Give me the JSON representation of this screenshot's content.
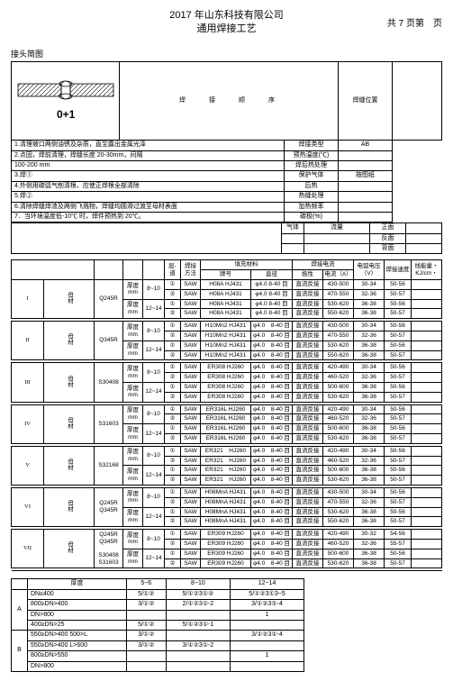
{
  "header": {
    "company": "2017 年山东科技有限公司",
    "doctitle": "通用焊接工艺",
    "pageinfo": "共 7 页第　页"
  },
  "joint_label": "接头简图",
  "joint_caption": "0+1",
  "step_header": "焊　　接　　顺　　序",
  "step_header2": "焊缝位置",
  "steps": [
    {
      "t": "1.清理坡口两侧油锈及杂质，直至露出金属光泽",
      "r1": "焊接类型",
      "r2": "AB"
    },
    {
      "t": "2.点固，焊前清理，焊缝长度 20-30mm，间隔",
      "r1": "预热温度(℃)",
      "r2": ""
    },
    {
      "t": "100-200 mm",
      "r1": "焊后热处理",
      "r2": ""
    },
    {
      "t": "3.焊①",
      "r1": "保护气体",
      "r2": "按图纸"
    },
    {
      "t": "4.外侧用碳弧气刨清根，应使正焊根全部清除",
      "r1": "后热",
      "r2": ""
    },
    {
      "t": "5.焊②",
      "r1": "热缝处理",
      "r2": ""
    },
    {
      "t": "6.清除焊缝焊渣及两侧飞溅物，焊缝均圆滑过渡至母材表面",
      "r1": "加热频率",
      "r2": ""
    },
    {
      "t": "7．当环境温度低-10℃ 时，焊件预热到 20℃。",
      "r1": "碳极(%)",
      "r2": ""
    }
  ],
  "gas_labels": {
    "zm": "正面",
    "fm": "反面",
    "bm": "背面",
    "qt": "气体",
    "ll": "流量"
  },
  "main_headers": {
    "layer": "层-道",
    "method": "焊接方法",
    "filler": "填充材料",
    "brand": "牌号",
    "dia": "直径",
    "current": "焊接电流",
    "polarity": "极性",
    "amp": "电流（A）",
    "volt": "电弧电压（V）",
    "speed": "焊接速度",
    "energy": "线能量・KJ/cm・"
  },
  "groups": [
    {
      "id": "I",
      "mat": "Q245R",
      "rows": [
        {
          "th": "厚度mm",
          "tv": "8~10",
          "layers": [
            "①",
            "②"
          ],
          "m": "SAW",
          "brand": "H08A HJ431",
          "dia": "φ4.0 8-40 目",
          "pol": "直流反接",
          "amp": "430-500",
          "v": "30-34",
          "e": "50-56"
        },
        {
          "layers": [],
          "m": "SAW",
          "brand": "H08A HJ431",
          "dia": "φ4.0 8-40 目",
          "pol": "直流反接",
          "amp": "470-550",
          "v": "32-36",
          "e": "50-57"
        },
        {
          "th": "厚度mm",
          "tv": "12~14",
          "layers": [
            "①",
            "②"
          ],
          "m": "SAW",
          "brand": "H08A HJ431",
          "dia": "φ4.0 8-40 目",
          "pol": "直流反接",
          "amp": "530-620",
          "v": "36-38",
          "e": "50-56"
        },
        {
          "layers": [],
          "m": "SAW",
          "brand": "H08A HJ431",
          "dia": "φ4.0 8-40 目",
          "pol": "直流反接",
          "amp": "550-620",
          "v": "36-38",
          "e": "50-57"
        }
      ]
    },
    {
      "id": "II",
      "mat": "Q345R",
      "rows": [
        {
          "th": "厚度mm",
          "tv": "8~10",
          "layers": [
            "①",
            "②"
          ],
          "m": "SAW",
          "brand": "H10Mn2 HJ431",
          "dia": "φ4.0　8-40 目",
          "pol": "直流反接",
          "amp": "430-500",
          "v": "30-34",
          "e": "50-56"
        },
        {
          "layers": [],
          "m": "SAW",
          "brand": "H10Mn2 HJ431",
          "dia": "φ4.0　8-40 目",
          "pol": "直流反接",
          "amp": "470-550",
          "v": "32-36",
          "e": "50-57"
        },
        {
          "th": "厚度mm",
          "tv": "12~14",
          "layers": [
            "①",
            "②"
          ],
          "m": "SAW",
          "brand": "H10Mn2 HJ431",
          "dia": "φ4.0　8-40 目",
          "pol": "直流反接",
          "amp": "530-620",
          "v": "36-38",
          "e": "50-56"
        },
        {
          "layers": [],
          "m": "SAW",
          "brand": "H10Mn2 HJ431",
          "dia": "φ4.0　8-40 目",
          "pol": "直流反接",
          "amp": "550-620",
          "v": "36-38",
          "e": "50-57"
        }
      ]
    },
    {
      "id": "III",
      "mat": "S30408",
      "rows": [
        {
          "th": "厚度mm",
          "tv": "8~10",
          "layers": [
            "①",
            "②"
          ],
          "m": "SAW",
          "brand": "ER308 HJ260",
          "dia": "φ4.0　8-40 目",
          "pol": "直流反接",
          "amp": "420-490",
          "v": "30-34",
          "e": "50-56"
        },
        {
          "layers": [],
          "m": "SAW",
          "brand": "ER308 HJ260",
          "dia": "φ4.0　8-40 目",
          "pol": "直流反接",
          "amp": "460-520",
          "v": "32-36",
          "e": "50-57"
        },
        {
          "th": "厚度mm",
          "tv": "12~14",
          "layers": [
            "①",
            "②"
          ],
          "m": "SAW",
          "brand": "ER308 HJ260",
          "dia": "φ4.0　8-40 目",
          "pol": "直流反接",
          "amp": "500-600",
          "v": "36-38",
          "e": "50-56"
        },
        {
          "layers": [],
          "m": "SAW",
          "brand": "ER308 HJ260",
          "dia": "φ4.0　8-40 目",
          "pol": "直流反接",
          "amp": "530-620",
          "v": "36-38",
          "e": "50-57"
        }
      ]
    },
    {
      "id": "IV",
      "mat": "S31603",
      "rows": [
        {
          "th": "厚度mm",
          "tv": "8~10",
          "layers": [
            "①",
            "②"
          ],
          "m": "SAW",
          "brand": "ER316L HJ260",
          "dia": "φ4.0　8-40 目",
          "pol": "直流反接",
          "amp": "420-490",
          "v": "30-34",
          "e": "50-56"
        },
        {
          "layers": [],
          "m": "SAW",
          "brand": "ER316L HJ260",
          "dia": "φ4.0　8-40 目",
          "pol": "直流反接",
          "amp": "460-520",
          "v": "32-36",
          "e": "50-57"
        },
        {
          "th": "厚度mm",
          "tv": "12~14",
          "layers": [
            "①",
            "②"
          ],
          "m": "SAW",
          "brand": "ER316L HJ260",
          "dia": "φ4.0　8-40 目",
          "pol": "直流反接",
          "amp": "500-600",
          "v": "36-38",
          "e": "50-56"
        },
        {
          "layers": [],
          "m": "SAW",
          "brand": "ER316L HJ260",
          "dia": "φ4.0　8-40 目",
          "pol": "直流反接",
          "amp": "530-620",
          "v": "36-38",
          "e": "50-57"
        }
      ]
    },
    {
      "id": "V",
      "mat": "S32168",
      "rows": [
        {
          "th": "厚度mm",
          "tv": "8~10",
          "layers": [
            "①",
            "②"
          ],
          "m": "SAW",
          "brand": "ER321　HJ260",
          "dia": "φ4.0　8-40 目",
          "pol": "直流反接",
          "amp": "420-490",
          "v": "30-34",
          "e": "50-56"
        },
        {
          "layers": [],
          "m": "SAW",
          "brand": "ER321　HJ260",
          "dia": "φ4.0　8-40 目",
          "pol": "直流反接",
          "amp": "460-520",
          "v": "32-36",
          "e": "50-57"
        },
        {
          "th": "厚度mm",
          "tv": "12~14",
          "layers": [
            "①",
            "②"
          ],
          "m": "SAW",
          "brand": "ER321　HJ260",
          "dia": "φ4.0　8-40 目",
          "pol": "直流反接",
          "amp": "500-600",
          "v": "36-38",
          "e": "50-56"
        },
        {
          "layers": [],
          "m": "SAW",
          "brand": "ER321　HJ260",
          "dia": "φ4.0　8-40 目",
          "pol": "直流反接",
          "amp": "530-620",
          "v": "36-38",
          "e": "50-57"
        }
      ]
    },
    {
      "id": "VI",
      "mat": "Q245R\nQ345R",
      "rows": [
        {
          "th": "厚度mm",
          "tv": "8~10",
          "layers": [
            "①",
            "②"
          ],
          "m": "SAW",
          "brand": "H08MnA HJ431",
          "dia": "φ4.0　8-40 目",
          "pol": "直流反接",
          "amp": "430-500",
          "v": "30-34",
          "e": "50-56"
        },
        {
          "layers": [],
          "m": "SAW",
          "brand": "H08MnA HJ431",
          "dia": "φ4.0　8-40 目",
          "pol": "直流反接",
          "amp": "470-550",
          "v": "32-36",
          "e": "50-57"
        },
        {
          "th": "厚度mm",
          "tv": "12~14",
          "layers": [
            "①",
            "②"
          ],
          "m": "SAW",
          "brand": "H08MnA HJ431",
          "dia": "φ4.0　8-40 目",
          "pol": "直流反接",
          "amp": "530-620",
          "v": "36-38",
          "e": "50-56"
        },
        {
          "layers": [],
          "m": "SAW",
          "brand": "H08MnA HJ431",
          "dia": "φ4.0　8-40 目",
          "pol": "直流反接",
          "amp": "550-620",
          "v": "36-38",
          "e": "50-57"
        }
      ]
    },
    {
      "id": "VII",
      "mat": "Q245R\nQ345R\n\nS30408\nS31603",
      "rows": [
        {
          "th": "厚度mm",
          "tv": "8~10",
          "layers": [
            "①",
            "②"
          ],
          "m": "SAW",
          "brand": "ER309 HJ260",
          "dia": "φ4.0　8-40 目",
          "pol": "直流反接",
          "amp": "420-490",
          "v": "30-32",
          "e": "54-56"
        },
        {
          "layers": [],
          "m": "SAW",
          "brand": "ER309 HJ260",
          "dia": "φ4.0　8-40 目",
          "pol": "直流反接",
          "amp": "460-520",
          "v": "32-36",
          "e": "55-57"
        },
        {
          "th": "厚度mm",
          "tv": "12~14",
          "layers": [
            "①",
            "②"
          ],
          "m": "SAW",
          "brand": "ER309 HJ260",
          "dia": "φ4.0　8-40 目",
          "pol": "直流反接",
          "amp": "500-600",
          "v": "36-38",
          "e": "50-56"
        },
        {
          "layers": [],
          "m": "SAW",
          "brand": "ER309 HJ260",
          "dia": "φ4.0　8-40 目",
          "pol": "直流反接",
          "amp": "530-620",
          "v": "36-38",
          "e": "50-57"
        }
      ]
    }
  ],
  "thick": {
    "header": "厚度",
    "cols": [
      "5~6",
      "8~10",
      "12~14"
    ],
    "rows": [
      {
        "g": "A",
        "l": "DN≤400",
        "c": [
          "5/①②",
          "5/①②3①②",
          "5/①②3①3~5"
        ]
      },
      {
        "g": "A",
        "l": "800≥DN>400",
        "c": [
          "3/①②",
          "2/①②3①-2",
          "3/①②3①-4"
        ]
      },
      {
        "g": "A",
        "l": "DN>800",
        "c": [
          "",
          "",
          "1"
        ]
      },
      {
        "g": "A",
        "l": "400≥DN>25",
        "c": [
          "5/①②",
          "5/①②3①-1",
          ""
        ]
      },
      {
        "g": "B",
        "l": "550≥DN>400 500>L",
        "c": [
          "3/①②",
          "",
          "3/①②3①-4"
        ]
      },
      {
        "g": "B",
        "l": "550≥DN>400 L>600",
        "c": [
          "3/①②",
          "3/①②3①-2",
          ""
        ]
      },
      {
        "g": "B",
        "l": "800≥DN>550",
        "c": [
          "",
          "",
          "1"
        ]
      },
      {
        "g": "B",
        "l": "DN>800",
        "c": [
          "",
          "",
          ""
        ]
      }
    ]
  },
  "mumat": "母材"
}
